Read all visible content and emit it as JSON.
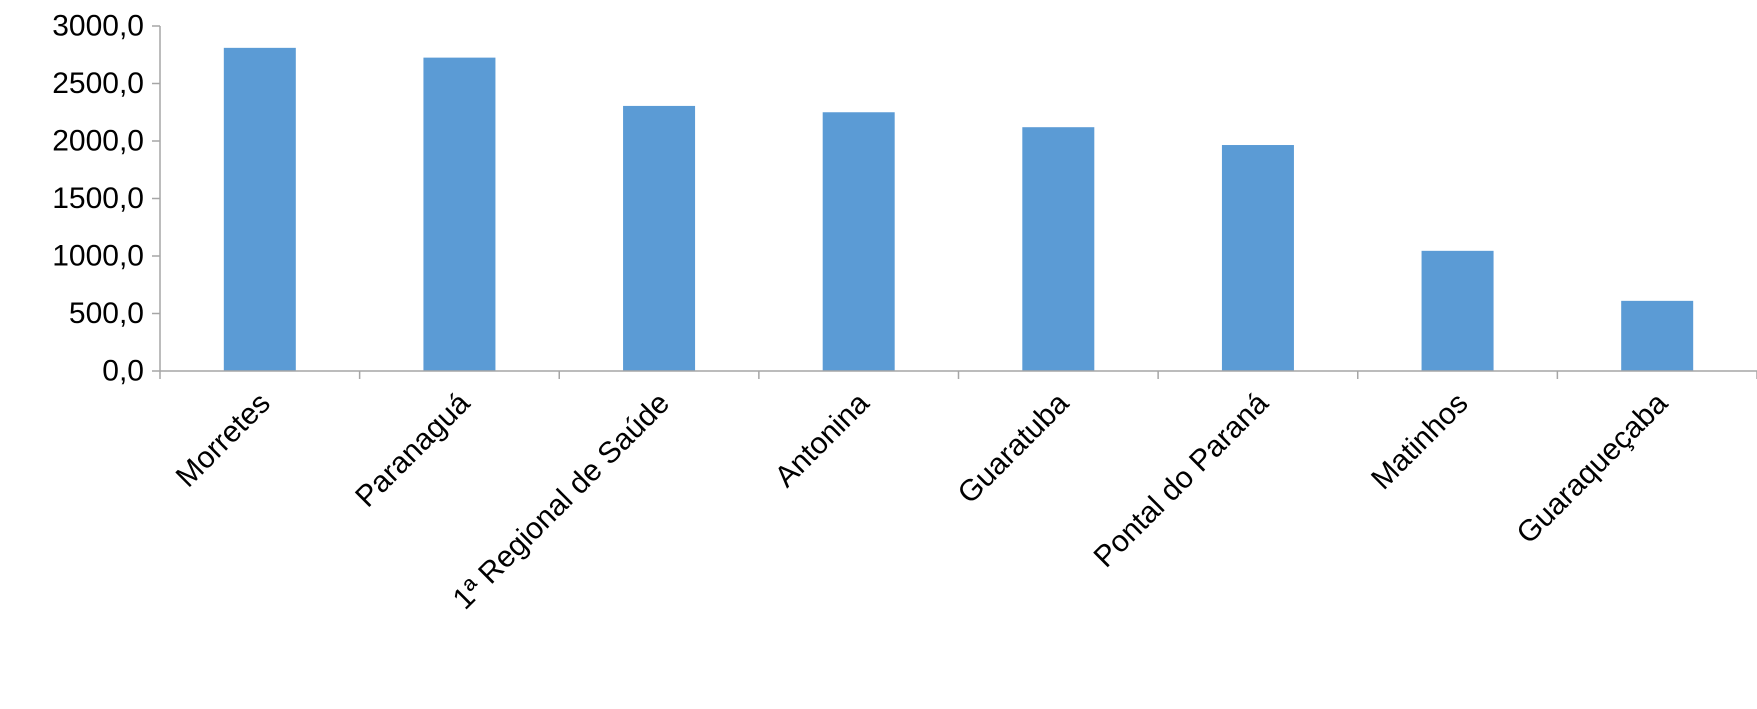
{
  "chart_data": {
    "type": "bar",
    "categories": [
      "Morretes",
      "Paranaguá",
      "1ª Regional de Saúde",
      "Antonina",
      "Guaratuba",
      "Pontal do Paraná",
      "Matinhos",
      "Guaraqueçaba"
    ],
    "values": [
      2810,
      2725,
      2305,
      2250,
      2120,
      1965,
      1045,
      610
    ],
    "ylim": [
      0,
      3000
    ],
    "yticks": [
      0,
      500,
      1000,
      1500,
      2000,
      2500,
      3000
    ],
    "ytick_labels": [
      "0,0",
      "500,0",
      "1000,0",
      "1500,0",
      "2000,0",
      "2500,0",
      "3000,0"
    ],
    "title": "",
    "xlabel": "",
    "ylabel": "",
    "grid": false,
    "legend": "none",
    "colors": {
      "bar": "#5b9bd5",
      "axis": "#a6a6a6",
      "text": "#000000"
    }
  }
}
